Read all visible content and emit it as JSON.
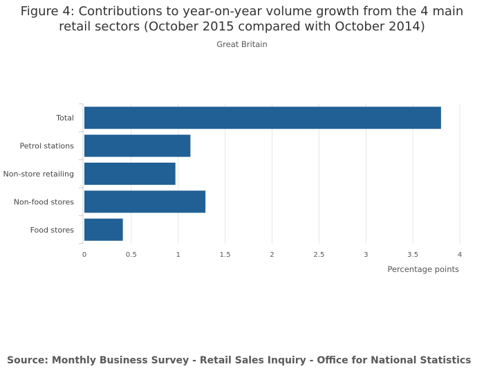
{
  "title_line1": "Figure 4: Contributions to year-on-year volume growth from the 4 main",
  "title_line2": "retail sectors (October 2015 compared with October 2014)",
  "subtitle": "Great Britain",
  "source": "Source: Monthly Business Survey - Retail Sales Inquiry - Office for National Statistics",
  "chart_data": {
    "type": "bar",
    "orientation": "horizontal",
    "categories": [
      "Total",
      "Petrol stations",
      "Non-store retailing",
      "Non-food stores",
      "Food stores"
    ],
    "values": [
      3.8,
      1.13,
      0.97,
      1.29,
      0.41
    ],
    "xlabel": "Percentage points",
    "xlim": [
      0,
      4
    ],
    "xticks": [
      "0",
      "0.5",
      "1",
      "1.5",
      "2",
      "2.5",
      "3",
      "3.5",
      "4"
    ],
    "bar_color": "#206095",
    "grid": true
  }
}
